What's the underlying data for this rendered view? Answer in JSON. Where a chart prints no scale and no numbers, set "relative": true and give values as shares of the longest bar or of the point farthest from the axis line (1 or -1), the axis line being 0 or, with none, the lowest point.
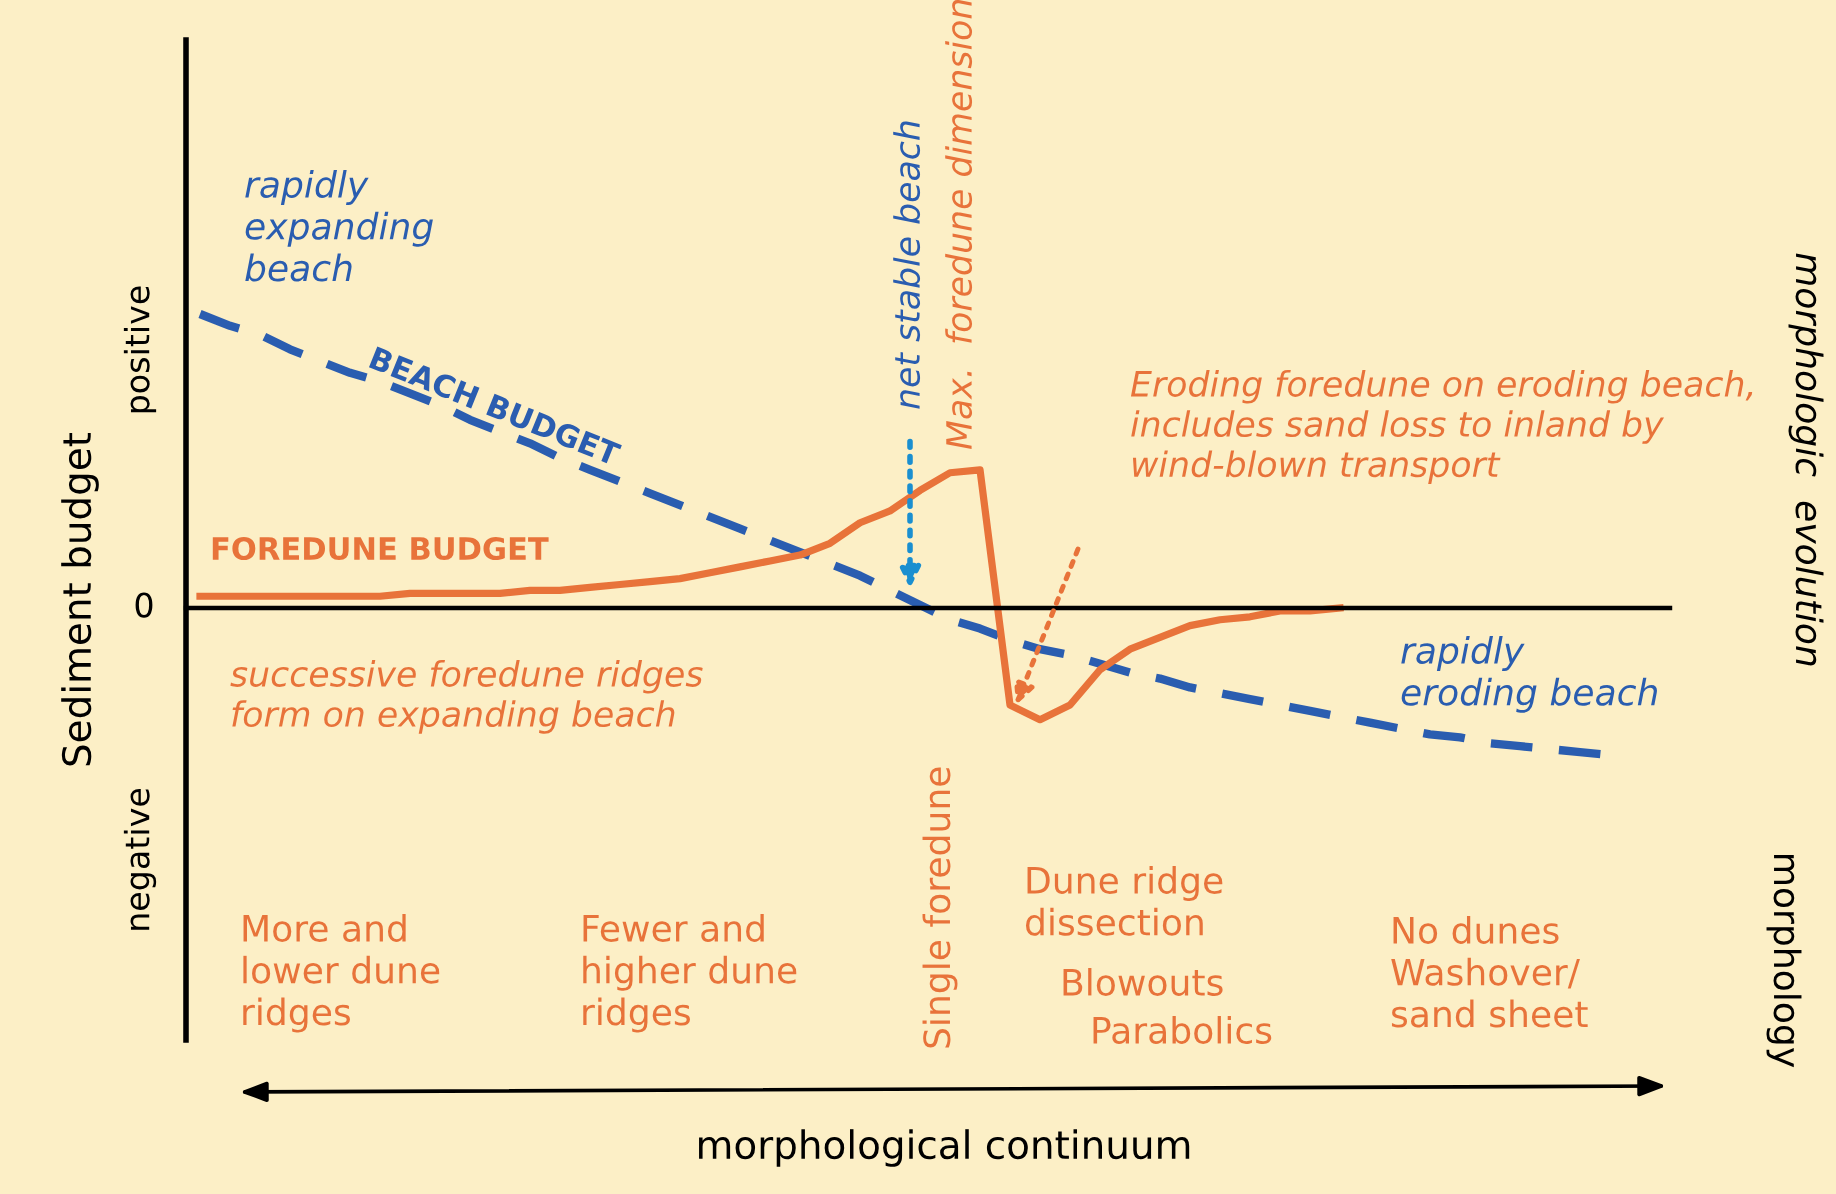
{
  "chart_data": {
    "type": "line",
    "relative": true,
    "ylabel": "Sediment budget",
    "categories": [
      null,
      null,
      null,
      null,
      null,
      null,
      null,
      null,
      null,
      null,
      null,
      null,
      null,
      null,
      null,
      null,
      null,
      null,
      null,
      null,
      null,
      null,
      null,
      null,
      null,
      null,
      null,
      null,
      null,
      null,
      null,
      null,
      null,
      null,
      null,
      null,
      null,
      null,
      null,
      null,
      null,
      null,
      null,
      null,
      null,
      null,
      null,
      null,
      null,
      null
    ],
    "series": [
      {
        "name": "BEACH BUDGET",
        "color": "#2a5db0",
        "line_style": "dashed",
        "values": [
          1.0,
          0.96,
          0.93,
          0.88,
          0.84,
          0.8,
          0.77,
          0.73,
          0.69,
          0.64,
          0.6,
          0.56,
          0.51,
          0.47,
          0.43,
          0.39,
          0.35,
          0.31,
          0.27,
          0.23,
          0.19,
          0.15,
          0.11,
          0.06,
          0.01,
          -0.04,
          -0.07,
          -0.11,
          -0.14,
          -0.16,
          -0.19,
          -0.22,
          -0.24,
          -0.27,
          -0.29,
          -0.31,
          -0.33,
          -0.35,
          -0.37,
          -0.39,
          -0.41,
          -0.43,
          -0.44,
          -0.46,
          -0.47,
          -0.48,
          -0.49,
          -0.5,
          null,
          null
        ]
      },
      {
        "name": "FOREDUNE BUDGET",
        "color": "#e8733a",
        "line_style": "solid",
        "values": [
          0.04,
          0.04,
          0.04,
          0.04,
          0.04,
          0.04,
          0.04,
          0.05,
          0.05,
          0.05,
          0.05,
          0.06,
          0.06,
          0.07,
          0.08,
          0.09,
          0.1,
          0.12,
          0.14,
          0.16,
          0.18,
          0.22,
          0.29,
          0.33,
          0.4,
          0.46,
          0.47,
          -0.33,
          -0.38,
          -0.33,
          -0.21,
          -0.14,
          -0.1,
          -0.06,
          -0.04,
          -0.03,
          -0.01,
          -0.01,
          0.0,
          null,
          null,
          null,
          null,
          null,
          null,
          null,
          null,
          null,
          null,
          null
        ]
      }
    ],
    "annotations": [
      "rapidly\nexpanding\nbeach",
      "net stable beach",
      "Max.  foredune dimension",
      "Eroding foredune on eroding beach,\nincludes sand loss to inland by\nwind-blown transport",
      "successive foredune ridges\nform on expanding beach",
      "rapidly\neroding beach",
      "More and\nlower dune\nridges",
      "Fewer and\nhigher dune\nridges",
      "Single foredune",
      "Dune ridge\ndissection",
      "Blowouts",
      "Parabolics",
      "No dunes\nWashover/\nsand sheet",
      "positive",
      "0",
      "negative",
      "morphologic  evolution",
      "morphology",
      "morphological continuum"
    ]
  }
}
